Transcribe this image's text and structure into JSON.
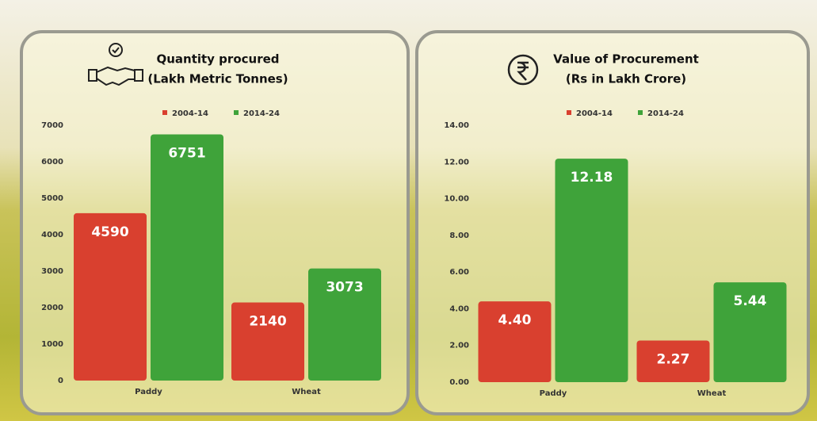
{
  "chart_data": [
    {
      "type": "bar",
      "title": "Quantity procured",
      "subtitle": "(Lakh Metric Tonnes)",
      "categories": [
        "Paddy",
        "Wheat"
      ],
      "series": [
        {
          "name": "2004-14",
          "color": "#d9402f",
          "values": [
            4590,
            2140
          ]
        },
        {
          "name": "2014-24",
          "color": "#3fa33a",
          "values": [
            6751,
            3073
          ]
        }
      ],
      "ylim": [
        0,
        7000
      ],
      "yticks": [
        0,
        1000,
        2000,
        3000,
        4000,
        5000,
        6000,
        7000
      ]
    },
    {
      "type": "bar",
      "title": "Value of Procurement",
      "subtitle": "(Rs in Lakh Crore)",
      "categories": [
        "Paddy",
        "Wheat"
      ],
      "series": [
        {
          "name": "2004-14",
          "color": "#d9402f",
          "values": [
            4.4,
            2.27
          ],
          "value_labels": [
            "4.40",
            "2.27"
          ]
        },
        {
          "name": "2014-24",
          "color": "#3fa33a",
          "values": [
            12.18,
            5.44
          ],
          "value_labels": [
            "12.18",
            "5.44"
          ]
        }
      ],
      "ylim": [
        0,
        14
      ],
      "yticks": [
        {
          "value": 0,
          "label": "0.00"
        },
        {
          "value": 2,
          "label": "2.00"
        },
        {
          "value": 4,
          "label": "4.00"
        },
        {
          "value": 6,
          "label": "6.00"
        },
        {
          "value": 8,
          "label": "8.00"
        },
        {
          "value": 10,
          "label": "10.00"
        },
        {
          "value": 12,
          "label": "12.00"
        },
        {
          "value": 14,
          "label": "14.00"
        }
      ]
    }
  ]
}
